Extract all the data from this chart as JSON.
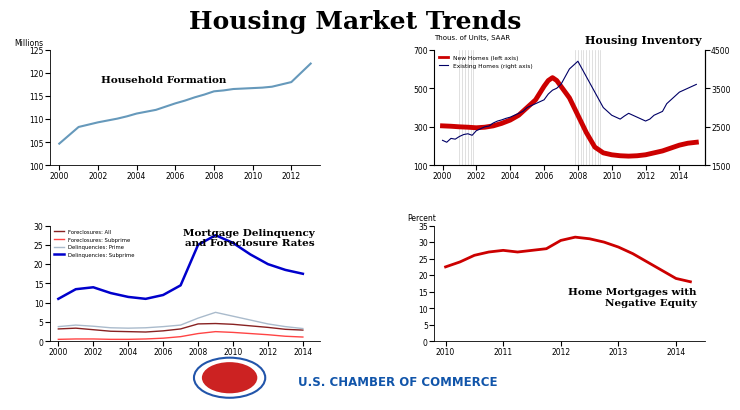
{
  "title": "Housing Market Trends",
  "title_fontsize": 18,
  "title_fontweight": "bold",
  "hh_formation": {
    "years": [
      2000,
      2000.5,
      2001,
      2001.5,
      2002,
      2002.5,
      2003,
      2003.5,
      2004,
      2004.5,
      2005,
      2005.5,
      2006,
      2006.5,
      2007,
      2007.5,
      2008,
      2008.5,
      2009,
      2009.5,
      2010,
      2010.5,
      2011,
      2011.5,
      2012,
      2012.5,
      2013
    ],
    "values": [
      104.7,
      106.5,
      108.3,
      108.8,
      109.3,
      109.7,
      110.1,
      110.6,
      111.2,
      111.6,
      112.0,
      112.7,
      113.4,
      114.0,
      114.7,
      115.3,
      116.0,
      116.2,
      116.5,
      116.6,
      116.7,
      116.8,
      117.0,
      117.5,
      118.0,
      120.0,
      122.0
    ],
    "label": "Household Formation",
    "ylabel": "Millions",
    "ylim": [
      100,
      125
    ],
    "yticks": [
      100,
      105,
      110,
      115,
      120,
      125
    ],
    "xlim": [
      1999.5,
      2013.5
    ],
    "xticks": [
      2000,
      2002,
      2004,
      2006,
      2008,
      2010,
      2012
    ],
    "color": "#6699BB",
    "linewidth": 1.5
  },
  "housing_inv": {
    "title": "Housing Inventory",
    "ylabel_left": "Thous. of Units, SAAR",
    "ylim_left": [
      100,
      700
    ],
    "ylim_right": [
      1500,
      4500
    ],
    "yticks_left": [
      100,
      300,
      500,
      700
    ],
    "yticks_right": [
      1500,
      2500,
      3500,
      4500
    ],
    "xlim": [
      1999.5,
      2015.5
    ],
    "xticks": [
      2000,
      2002,
      2004,
      2006,
      2008,
      2010,
      2012,
      2014
    ],
    "new_homes_years": [
      2000,
      2000.5,
      2001,
      2001.5,
      2002,
      2002.5,
      2003,
      2003.5,
      2004,
      2004.5,
      2005,
      2005.5,
      2006,
      2006.25,
      2006.5,
      2006.75,
      2007,
      2007.5,
      2008,
      2008.5,
      2009,
      2009.5,
      2010,
      2010.5,
      2011,
      2011.5,
      2012,
      2012.5,
      2013,
      2013.5,
      2014,
      2014.5,
      2015
    ],
    "new_homes_values": [
      305,
      303,
      300,
      298,
      295,
      298,
      305,
      318,
      335,
      360,
      400,
      440,
      510,
      540,
      555,
      540,
      510,
      450,
      360,
      270,
      195,
      165,
      155,
      150,
      148,
      150,
      155,
      165,
      175,
      190,
      205,
      215,
      220
    ],
    "existing_homes_years": [
      2000,
      2000.25,
      2000.5,
      2000.75,
      2001,
      2001.25,
      2001.5,
      2001.75,
      2002,
      2002.25,
      2002.5,
      2002.75,
      2003,
      2003.25,
      2003.5,
      2003.75,
      2004,
      2004.25,
      2004.5,
      2004.75,
      2005,
      2005.25,
      2005.5,
      2005.75,
      2006,
      2006.25,
      2006.5,
      2006.75,
      2007,
      2007.25,
      2007.5,
      2007.75,
      2008,
      2008.25,
      2008.5,
      2008.75,
      2009,
      2009.25,
      2009.5,
      2009.75,
      2010,
      2010.25,
      2010.5,
      2010.75,
      2011,
      2011.25,
      2011.5,
      2011.75,
      2012,
      2012.25,
      2012.5,
      2012.75,
      2013,
      2013.25,
      2013.5,
      2013.75,
      2014,
      2014.25,
      2014.5,
      2014.75,
      2015
    ],
    "existing_homes_values": [
      2150,
      2100,
      2200,
      2180,
      2250,
      2300,
      2320,
      2280,
      2400,
      2450,
      2500,
      2520,
      2600,
      2650,
      2680,
      2720,
      2750,
      2800,
      2850,
      2900,
      3000,
      3050,
      3100,
      3150,
      3200,
      3350,
      3450,
      3500,
      3600,
      3800,
      4000,
      4100,
      4200,
      4000,
      3800,
      3600,
      3400,
      3200,
      3000,
      2900,
      2800,
      2750,
      2700,
      2780,
      2850,
      2800,
      2750,
      2700,
      2650,
      2700,
      2800,
      2850,
      2900,
      3100,
      3200,
      3300,
      3400,
      3450,
      3500,
      3550,
      3600
    ],
    "recession_vlines": [
      2001.0,
      2001.17,
      2001.33,
      2001.5,
      2001.67,
      2001.83,
      2007.83,
      2008.0,
      2008.17,
      2008.33,
      2008.5,
      2008.67,
      2008.83,
      2009.0,
      2009.17,
      2009.33
    ],
    "new_color": "#CC0000",
    "existing_color": "#000066",
    "new_linewidth": 3.5,
    "existing_linewidth": 0.8
  },
  "delinquency": {
    "title": "Mortgage Delinquency\nand Foreclosure Rates",
    "ylim": [
      0,
      30
    ],
    "yticks": [
      0,
      5,
      10,
      15,
      20,
      25,
      30
    ],
    "xlim": [
      1999.5,
      2015.0
    ],
    "xticks": [
      2000,
      2002,
      2004,
      2006,
      2008,
      2010,
      2012,
      2014
    ],
    "series": {
      "foreclosures_all": {
        "years": [
          2000,
          2001,
          2002,
          2003,
          2004,
          2005,
          2006,
          2007,
          2008,
          2009,
          2010,
          2011,
          2012,
          2013,
          2014
        ],
        "values": [
          3.2,
          3.4,
          3.0,
          2.6,
          2.5,
          2.4,
          2.7,
          3.2,
          4.5,
          4.6,
          4.4,
          4.0,
          3.6,
          3.1,
          2.9
        ],
        "color": "#882222",
        "linewidth": 1.0,
        "label": "Foreclosures: All"
      },
      "foreclosures_subprime": {
        "years": [
          2000,
          2001,
          2002,
          2003,
          2004,
          2005,
          2006,
          2007,
          2008,
          2009,
          2010,
          2011,
          2012,
          2013,
          2014
        ],
        "values": [
          0.5,
          0.6,
          0.6,
          0.5,
          0.5,
          0.6,
          0.8,
          1.2,
          2.0,
          2.5,
          2.3,
          2.0,
          1.7,
          1.3,
          1.1
        ],
        "color": "#FF4444",
        "linewidth": 1.0,
        "label": "Foreclosures: Subprime"
      },
      "delinquencies_prime": {
        "years": [
          2000,
          2001,
          2002,
          2003,
          2004,
          2005,
          2006,
          2007,
          2008,
          2009,
          2010,
          2011,
          2012,
          2013,
          2014
        ],
        "values": [
          3.8,
          4.2,
          3.9,
          3.5,
          3.4,
          3.5,
          3.8,
          4.2,
          6.0,
          7.5,
          6.5,
          5.5,
          4.5,
          3.8,
          3.3
        ],
        "color": "#AABBCC",
        "linewidth": 1.0,
        "label": "Delinquencies: Prime"
      },
      "delinquencies_subprime": {
        "years": [
          2000,
          2001,
          2002,
          2003,
          2004,
          2005,
          2006,
          2007,
          2008,
          2009,
          2010,
          2011,
          2012,
          2013,
          2014
        ],
        "values": [
          11.0,
          13.5,
          14.0,
          12.5,
          11.5,
          11.0,
          12.0,
          14.5,
          25.0,
          27.5,
          25.5,
          22.5,
          20.0,
          18.5,
          17.5
        ],
        "color": "#0000CC",
        "linewidth": 1.8,
        "label": "Delinquencies: Subprime"
      }
    }
  },
  "negative_equity": {
    "title": "Home Mortgages with\nNegative Equity",
    "ylabel": "Percent",
    "ylim": [
      0,
      35
    ],
    "yticks": [
      0,
      5,
      10,
      15,
      20,
      25,
      30,
      35
    ],
    "xlim": [
      2009.8,
      2014.5
    ],
    "xticks": [
      2010,
      2011,
      2012,
      2013,
      2014
    ],
    "years": [
      2010.0,
      2010.25,
      2010.5,
      2010.75,
      2011.0,
      2011.25,
      2011.5,
      2011.75,
      2012.0,
      2012.25,
      2012.5,
      2012.75,
      2013.0,
      2013.25,
      2013.5,
      2013.75,
      2014.0,
      2014.25
    ],
    "values": [
      22.5,
      24.0,
      26.0,
      27.0,
      27.5,
      27.0,
      27.5,
      28.0,
      30.5,
      31.5,
      31.0,
      30.0,
      28.5,
      26.5,
      24.0,
      21.5,
      19.0,
      18.0
    ],
    "color": "#CC0000",
    "linewidth": 2.0
  },
  "footer_line_color": "#7AAABB",
  "chamber_text": "U.S. CHAMBER OF COMMERCE",
  "chamber_color": "#1155AA",
  "background_color": "#FFFFFF"
}
